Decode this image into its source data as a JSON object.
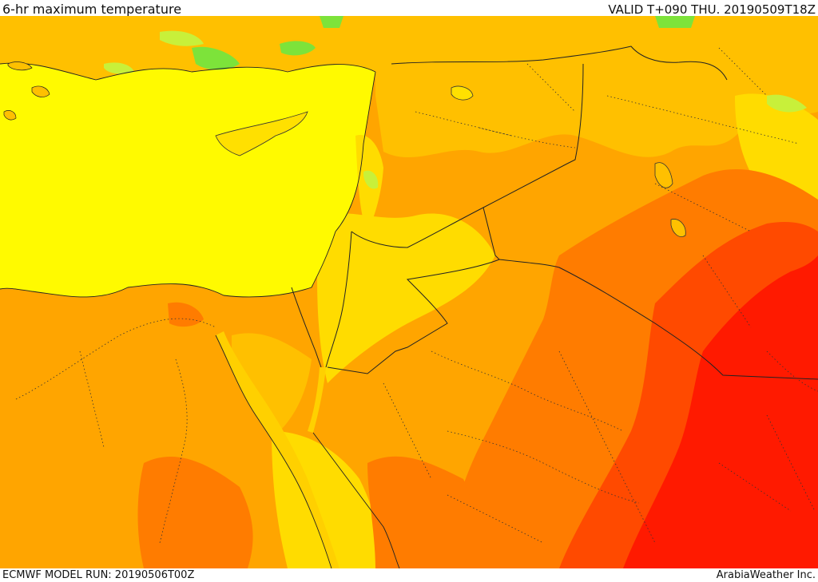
{
  "header": {
    "title": "6-hr maximum temperature",
    "valid_time": "VALID T+090 THU. 20190509T18Z"
  },
  "footer": {
    "model_run": "ECMWF MODEL RUN: 20190506T00Z",
    "credit": "ArabiaWeather Inc."
  },
  "map": {
    "palette": {
      "sea": "#fffa00",
      "green": "#7de33a",
      "light_green": "#c8f03a",
      "yellow": "#ffdc00",
      "light_orange": "#ffc000",
      "orange": "#ffa500",
      "dark_orange": "#ff7c00",
      "red_orange": "#ff4a00",
      "red": "#ff1a00"
    }
  }
}
